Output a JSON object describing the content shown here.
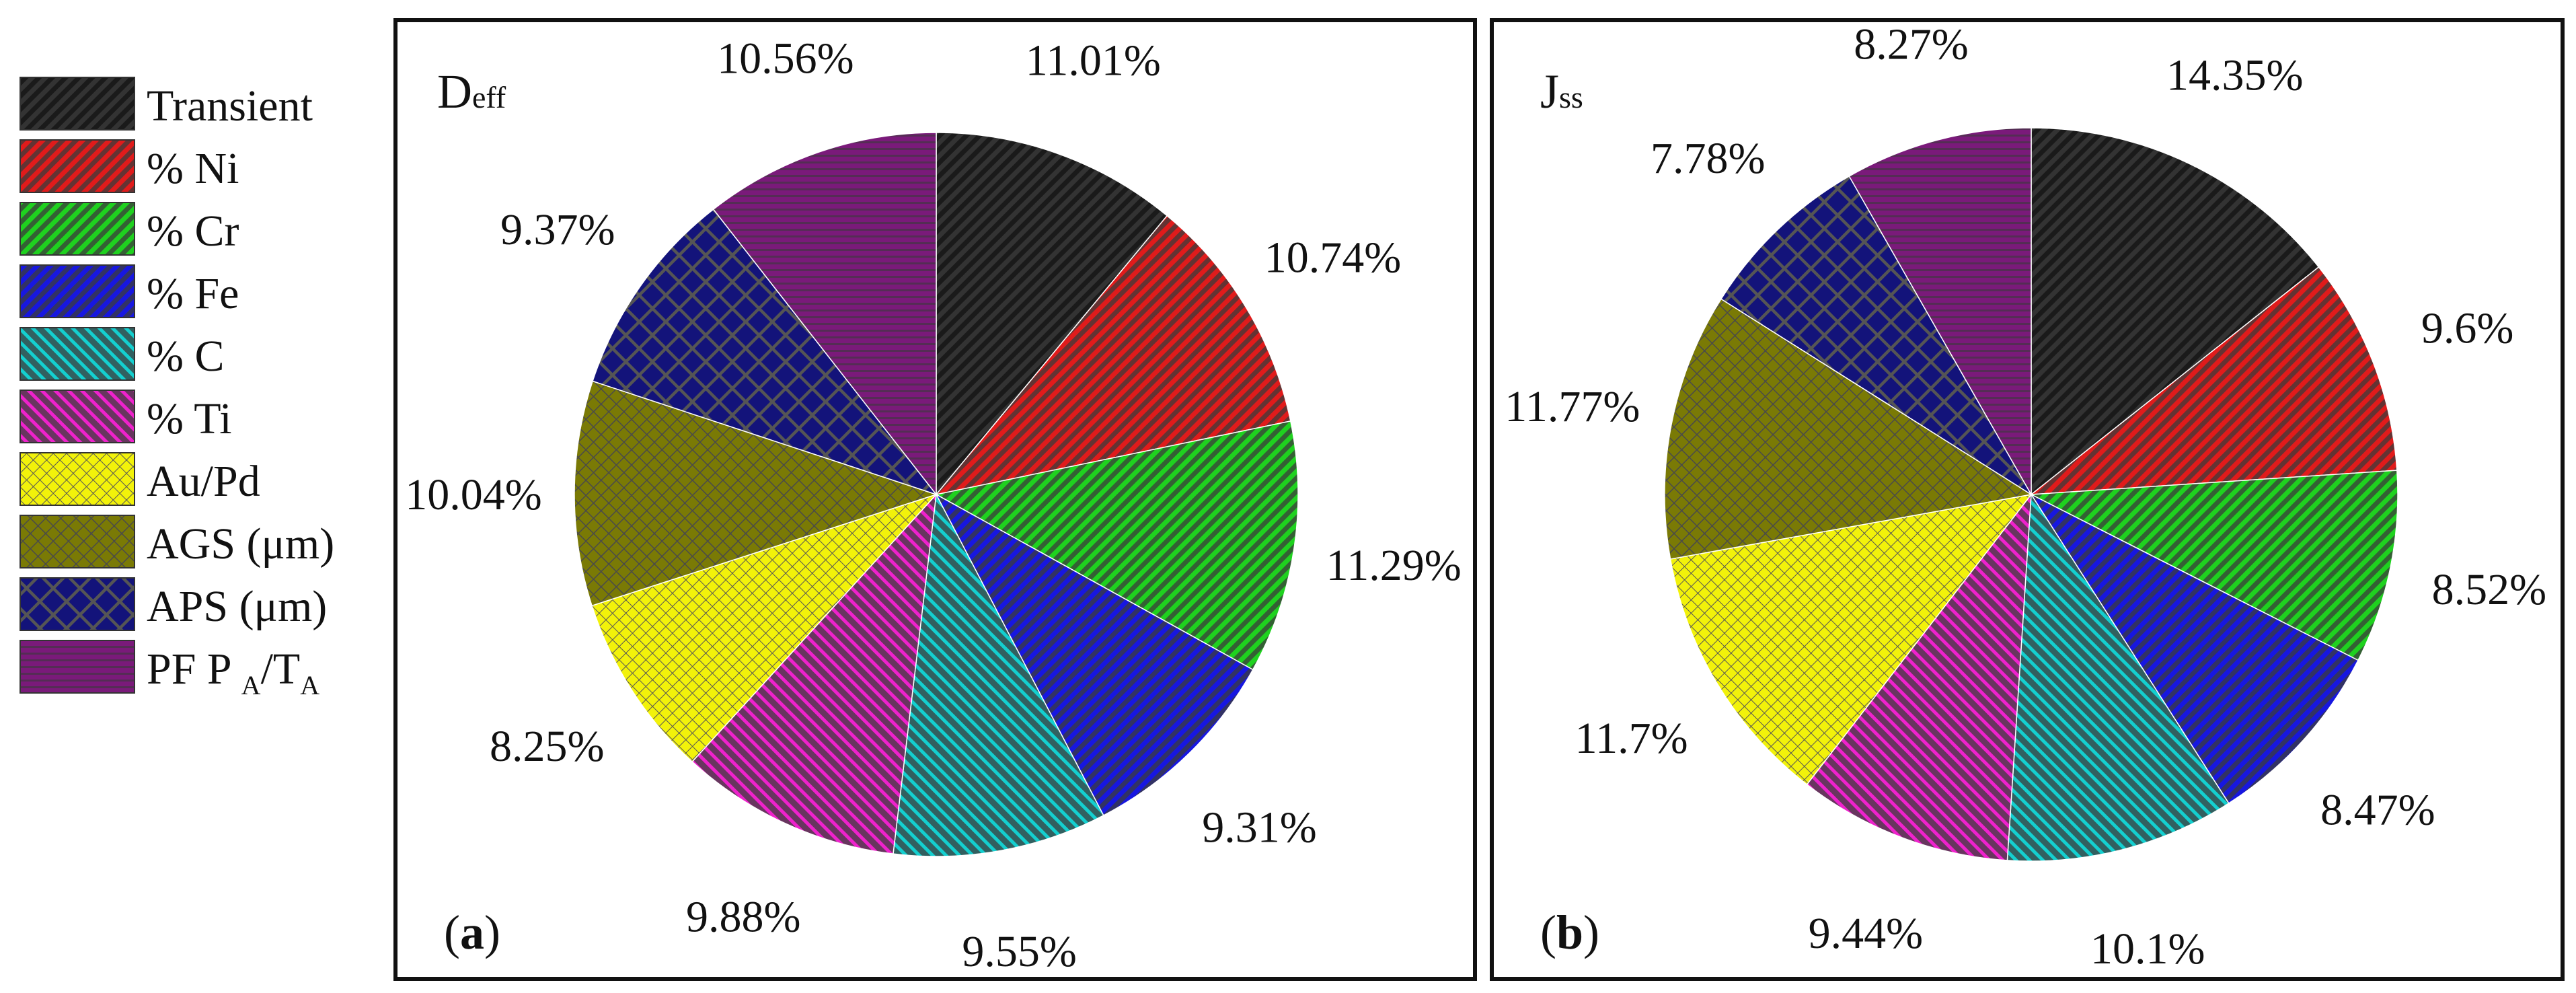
{
  "legend": [
    {
      "name": "Transient",
      "color": "#1a1a1a",
      "pattern": "diag-right"
    },
    {
      "name": "% Ni",
      "color": "#e01b1b",
      "pattern": "diag-right"
    },
    {
      "name": "% Cr",
      "color": "#1fd11f",
      "pattern": "diag-right"
    },
    {
      "name": "% Fe",
      "color": "#1717e0",
      "pattern": "diag-right"
    },
    {
      "name": "% C",
      "color": "#14cfcf",
      "pattern": "diag-left"
    },
    {
      "name": "% Ti",
      "color": "#ee22cc",
      "pattern": "diag-left"
    },
    {
      "name": "Au/Pd",
      "color": "#f2f20a",
      "pattern": "fine-grid"
    },
    {
      "name": "AGS (μm)",
      "color": "#7a7a05",
      "pattern": "fine-cross"
    },
    {
      "name": "APS (μm)",
      "color": "#13137a",
      "pattern": "coarse-cross"
    },
    {
      "name": "PF P",
      "sub1": "A",
      "mid": "/T",
      "sub2": "A",
      "color": "#7a1a7a",
      "pattern": "horiz"
    }
  ],
  "chart_data": [
    {
      "type": "pie",
      "title": "D",
      "title_sub": "eff",
      "panel_label": "(a)",
      "panel_letter": "a",
      "categories": [
        "Transient",
        "% Ni",
        "% Cr",
        "% Fe",
        "% C",
        "% Ti",
        "Au/Pd",
        "AGS (μm)",
        "APS (μm)",
        "PF PA/TA"
      ],
      "values": [
        11.01,
        10.74,
        11.29,
        9.31,
        9.55,
        9.88,
        8.25,
        10.04,
        9.37,
        10.56
      ],
      "labels": [
        "11.01%",
        "10.74%",
        "11.29%",
        "9.31%",
        "9.55%",
        "9.88%",
        "8.25%",
        "10.04%",
        "9.37%",
        "10.56%"
      ],
      "start_angle": "12 o'clock",
      "direction": "clockwise"
    },
    {
      "type": "pie",
      "title": "J",
      "title_sub": "ss",
      "panel_label": "(b)",
      "panel_letter": "b",
      "categories": [
        "Transient",
        "% Ni",
        "% Cr",
        "% Fe",
        "% C",
        "% Ti",
        "Au/Pd",
        "AGS (μm)",
        "APS (μm)",
        "PF PA/TA"
      ],
      "values": [
        14.35,
        9.6,
        8.52,
        8.47,
        10.1,
        9.44,
        11.7,
        11.77,
        7.78,
        8.27
      ],
      "labels": [
        "14.35%",
        "9.6%",
        "8.52%",
        "8.47%",
        "10.1%",
        "9.44%",
        "11.7%",
        "11.77%",
        "7.78%",
        "8.27%"
      ],
      "start_angle": "12 o'clock",
      "direction": "clockwise"
    }
  ]
}
